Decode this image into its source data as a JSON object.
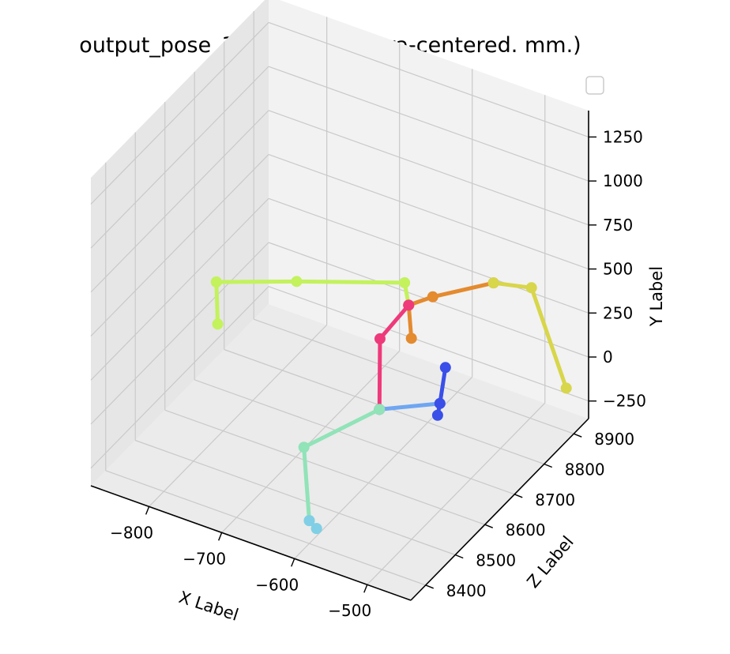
{
  "chart_data": {
    "type": "line3d",
    "title": "output_pose_3d (x,y,z: camera-centered. mm.)",
    "xlabel": "X Label",
    "ylabel": "Y Label",
    "zlabel": "Z Label",
    "x_ticks": [
      "−800",
      "−700",
      "−600",
      "−500"
    ],
    "y_ticks": [
      "−250",
      "0",
      "250",
      "500",
      "750",
      "1000",
      "1250"
    ],
    "z_ticks": [
      "8400",
      "8500",
      "8600",
      "8700",
      "8800",
      "8900"
    ],
    "legend": {
      "placement": "top-right",
      "entries": []
    },
    "grid": true,
    "pane_colors": {
      "back": "#f2f2f2",
      "side": "#e6e6e6",
      "floor": "#ebebeb"
    },
    "series": [
      {
        "color": "#c3f25d",
        "points": [
          [
            -850,
            250,
            8700
          ],
          [
            -760,
            300,
            8750
          ],
          [
            -640,
            350,
            8820
          ],
          [
            -610,
            370,
            8760
          ]
        ]
      },
      {
        "color": "#c3f25d",
        "points": [
          [
            -850,
            250,
            8700
          ],
          [
            -840,
            60,
            8680
          ]
        ]
      },
      {
        "color": "#e48a2f",
        "points": [
          [
            -610,
            370,
            8760
          ],
          [
            -585,
            420,
            8780
          ],
          [
            -530,
            460,
            8850
          ]
        ]
      },
      {
        "color": "#e48a2f",
        "points": [
          [
            -610,
            370,
            8760
          ],
          [
            -590,
            280,
            8720
          ]
        ]
      },
      {
        "color": "#d8d64a",
        "points": [
          [
            -530,
            460,
            8850
          ],
          [
            -490,
            440,
            8880
          ],
          [
            -430,
            10,
            8850
          ]
        ]
      },
      {
        "color": "#ee3a7a",
        "points": [
          [
            -610,
            370,
            8760
          ],
          [
            -625,
            260,
            8700
          ],
          [
            -585,
            90,
            8600
          ]
        ]
      },
      {
        "color": "#6fa6f2",
        "points": [
          [
            -585,
            90,
            8600
          ],
          [
            -510,
            200,
            8620
          ]
        ]
      },
      {
        "color": "#3a4fe8",
        "points": [
          [
            -535,
            230,
            8700
          ],
          [
            -510,
            200,
            8620
          ],
          [
            -505,
            175,
            8600
          ]
        ]
      },
      {
        "color": "#91e3b8",
        "points": [
          [
            -585,
            90,
            8600
          ],
          [
            -640,
            0,
            8480
          ],
          [
            -600,
            -220,
            8400
          ],
          [
            -590,
            -250,
            8400
          ]
        ]
      },
      {
        "color": "#80cfe6",
        "points": [
          [
            -600,
            -220,
            8400
          ],
          [
            -590,
            -250,
            8400
          ]
        ]
      }
    ]
  }
}
